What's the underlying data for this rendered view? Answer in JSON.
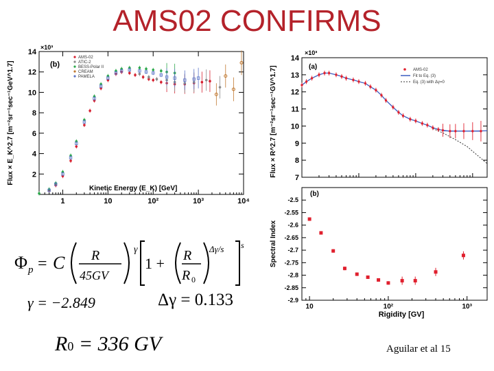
{
  "title": "AMS02 CONFIRMS",
  "credit": "Aguilar et al 15",
  "equations": {
    "phi_lhs": "Φ",
    "phi_sub": "p",
    "eq_sign": "=",
    "const_c": "C",
    "frac1_num": "R",
    "frac1_den": "45GV",
    "exp_gamma": "γ",
    "one_plus": "1 +",
    "frac2_num": "R",
    "frac2_den": "R",
    "frac2_den_sub": "0",
    "exp_dg_s": "Δγ/s",
    "exp_s": "s",
    "gamma_value": "γ = −2.849",
    "dgamma_value": "Δγ = 0.133",
    "r0_value": "R",
    "r0_sub": "0",
    "r0_rest": "= 336  GV"
  },
  "chart_data": [
    {
      "type": "scatter",
      "panel": "(b)",
      "xscale": "log",
      "xlim": [
        0.3,
        10000
      ],
      "ylim": [
        0,
        14000
      ],
      "multiplier": "×10³",
      "xlabel": "Kinetic Energy (E_K)  [GeV]",
      "ylabel": "Flux × E_K^2.7 [m⁻²sr⁻¹sec⁻¹GeV^1.7]",
      "x_ticks": [
        "1",
        "10",
        "10²",
        "10³",
        "10⁴"
      ],
      "y_ticks": [
        "2",
        "4",
        "6",
        "8",
        "10",
        "12",
        "14"
      ],
      "legend": [
        "AMS-02",
        "ATIC-2",
        "BESS-Polar II",
        "CREAM",
        "PAMELA"
      ],
      "legend_position": "top-left",
      "colors": {
        "AMS-02": "#d62030",
        "ATIC-2": "#8a8a8a",
        "BESS-Polar II": "#2aa84a",
        "CREAM": "#c07830",
        "PAMELA": "#5a74c8"
      },
      "series": [
        {
          "name": "AMS-02",
          "x": [
            0.5,
            0.7,
            1,
            1.5,
            2,
            3,
            4,
            5,
            7,
            10,
            15,
            20,
            30,
            40,
            60,
            80,
            100,
            150,
            200,
            300,
            500,
            800,
            1200,
            1800
          ],
          "y": [
            400,
            900,
            1800,
            3300,
            4700,
            6800,
            8200,
            9200,
            10400,
            11200,
            11800,
            12000,
            11900,
            11700,
            11500,
            11300,
            11200,
            11000,
            10900,
            10800,
            10800,
            10900,
            11000,
            11100
          ]
        },
        {
          "name": "ATIC-2",
          "x": [
            50,
            80,
            120,
            200,
            300,
            500,
            800,
            1500,
            3000
          ],
          "y": [
            11800,
            11500,
            11300,
            11200,
            11000,
            10900,
            11000,
            11200,
            10500
          ]
        },
        {
          "name": "BESS-Polar II",
          "x": [
            0.3,
            0.5,
            0.7,
            1,
            1.5,
            2,
            3,
            5,
            7,
            10,
            15,
            20,
            30,
            50,
            70,
            100,
            150,
            200,
            300
          ],
          "y": [
            100,
            500,
            1100,
            2200,
            3800,
            5200,
            7300,
            9600,
            10800,
            11600,
            12100,
            12300,
            12400,
            12400,
            12300,
            12200,
            12100,
            12000,
            11900
          ]
        },
        {
          "name": "CREAM",
          "x": [
            2500,
            4000,
            6000,
            9000
          ],
          "y": [
            9800,
            11600,
            10300,
            12900
          ]
        },
        {
          "name": "PAMELA",
          "x": [
            0.5,
            0.7,
            1,
            1.5,
            2,
            3,
            5,
            7,
            10,
            15,
            20,
            30,
            50,
            70,
            100,
            150,
            200,
            300,
            500,
            800,
            1000
          ],
          "y": [
            400,
            1000,
            2000,
            3600,
            5000,
            7100,
            9400,
            10600,
            11400,
            11900,
            12100,
            12200,
            12100,
            12000,
            11900,
            11700,
            11500,
            11400,
            11200,
            11300,
            11400
          ]
        }
      ]
    },
    {
      "type": "scatter",
      "panel": "(a)",
      "xscale": "log",
      "xlim": [
        1,
        1800
      ],
      "ylim": [
        7,
        14
      ],
      "multiplier": "×10³",
      "ylabel": "Flux × R^2.7 [m⁻²sr⁻¹sec⁻¹GV^1.7]",
      "y_ticks": [
        "7",
        "8",
        "9",
        "10",
        "11",
        "12",
        "13",
        "14"
      ],
      "legend": [
        "AMS-02",
        "Fit to Eq. (3)",
        "Eq. (3) with Δγ=0"
      ],
      "legend_position": "top-right",
      "colors": {
        "AMS-02": "#e0202e",
        "fit": "#3b5cc0",
        "no_break": "#333333"
      },
      "series": [
        {
          "name": "AMS-02",
          "x": [
            1,
            1.2,
            1.5,
            2,
            2.5,
            3,
            4,
            5,
            6,
            8,
            10,
            13,
            16,
            20,
            25,
            30,
            40,
            50,
            60,
            80,
            100,
            130,
            160,
            200,
            250,
            300,
            400,
            500,
            700,
            1000,
            1400
          ],
          "y": [
            12.4,
            12.6,
            12.8,
            13.0,
            13.1,
            13.1,
            13.0,
            12.9,
            12.8,
            12.7,
            12.6,
            12.5,
            12.3,
            12.1,
            11.8,
            11.5,
            11.1,
            10.8,
            10.6,
            10.4,
            10.3,
            10.15,
            10.05,
            9.9,
            9.8,
            9.75,
            9.7,
            9.7,
            9.7,
            9.7,
            9.7
          ]
        },
        {
          "name": "Fit to Eq. (3)",
          "x": [
            300,
            500,
            800,
            1200,
            1800
          ],
          "y": [
            9.72,
            9.7,
            9.7,
            9.71,
            9.72
          ]
        },
        {
          "name": "Eq. (3) with Δγ=0",
          "x": [
            200,
            300,
            500,
            800,
            1200,
            1800
          ],
          "y": [
            9.85,
            9.6,
            9.2,
            8.8,
            8.3,
            7.8
          ]
        }
      ]
    },
    {
      "type": "scatter",
      "panel": "(b)",
      "xscale": "log",
      "xlim": [
        8,
        1800
      ],
      "ylim": [
        -2.9,
        -2.45
      ],
      "xlabel": "Rigidity [GV]",
      "ylabel": "Spectral Index",
      "x_ticks": [
        "10",
        "10²",
        "10³"
      ],
      "y_ticks": [
        "-2.5",
        "-2.55",
        "-2.6",
        "-2.65",
        "-2.7",
        "-2.75",
        "-2.8",
        "-2.85",
        "-2.9"
      ],
      "series": [
        {
          "name": "Spectral Index",
          "x": [
            10,
            14,
            20,
            28,
            40,
            55,
            75,
            100,
            150,
            220,
            400,
            900
          ],
          "y": [
            -2.576,
            -2.631,
            -2.703,
            -2.773,
            -2.796,
            -2.808,
            -2.819,
            -2.831,
            -2.822,
            -2.822,
            -2.787,
            -2.721
          ]
        }
      ]
    }
  ]
}
